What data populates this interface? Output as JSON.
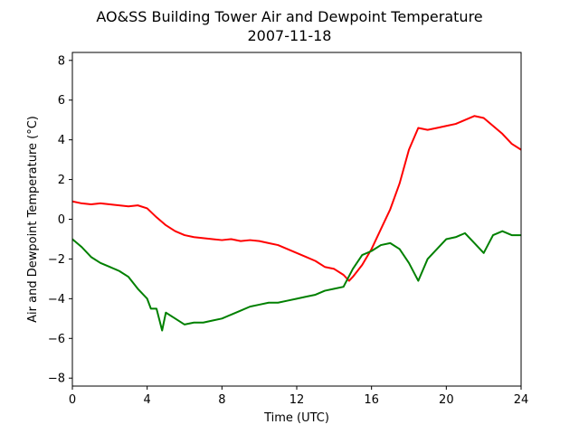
{
  "chart_data": {
    "type": "line",
    "title": "AO&SS Building Tower Air and Dewpoint Temperature",
    "subtitle": "2007-11-18",
    "xlabel": "Time (UTC)",
    "ylabel": "Air and Dewpoint Temperature (°C)",
    "xlim": [
      0,
      24
    ],
    "ylim": [
      -8.4,
      8.4
    ],
    "x_ticks": [
      0,
      4,
      8,
      12,
      16,
      20,
      24
    ],
    "y_ticks": [
      -8,
      -6,
      -4,
      -2,
      0,
      2,
      4,
      6,
      8
    ],
    "grid": false,
    "legend": "none",
    "series": [
      {
        "color": "#ff0000",
        "x": [
          0,
          0.5,
          1,
          1.5,
          2,
          2.5,
          3,
          3.5,
          4,
          4.5,
          5,
          5.5,
          6,
          6.5,
          7,
          7.5,
          8,
          8.5,
          9,
          9.5,
          10,
          10.5,
          11,
          11.5,
          12,
          12.5,
          13,
          13.5,
          14,
          14.5,
          14.8,
          15,
          15.5,
          16,
          16.5,
          17,
          17.5,
          18,
          18.5,
          19,
          19.5,
          20,
          20.5,
          21,
          21.5,
          22,
          22.5,
          23,
          23.5,
          24
        ],
        "y": [
          0.9,
          0.8,
          0.75,
          0.8,
          0.75,
          0.7,
          0.65,
          0.7,
          0.55,
          0.1,
          -0.3,
          -0.6,
          -0.8,
          -0.9,
          -0.95,
          -1.0,
          -1.05,
          -1.0,
          -1.1,
          -1.05,
          -1.1,
          -1.2,
          -1.3,
          -1.5,
          -1.7,
          -1.9,
          -2.1,
          -2.4,
          -2.5,
          -2.8,
          -3.1,
          -2.9,
          -2.3,
          -1.5,
          -0.5,
          0.5,
          1.8,
          3.5,
          4.6,
          4.5,
          4.6,
          4.7,
          4.8,
          5.0,
          5.2,
          5.1,
          4.7,
          4.3,
          3.8,
          3.5
        ]
      },
      {
        "color": "#008000",
        "x": [
          0,
          0.5,
          1,
          1.5,
          2,
          2.5,
          3,
          3.5,
          4,
          4.2,
          4.5,
          4.8,
          5,
          5.5,
          6,
          6.5,
          7,
          7.5,
          8,
          8.5,
          9,
          9.5,
          10,
          10.5,
          11,
          11.5,
          12,
          12.5,
          13,
          13.5,
          14,
          14.5,
          15,
          15.5,
          16,
          16.5,
          17,
          17.5,
          18,
          18.5,
          19,
          19.5,
          20,
          20.5,
          21,
          21.5,
          22,
          22.5,
          23,
          23.5,
          24
        ],
        "y": [
          -1.0,
          -1.4,
          -1.9,
          -2.2,
          -2.4,
          -2.6,
          -2.9,
          -3.5,
          -4.0,
          -4.5,
          -4.5,
          -5.6,
          -4.7,
          -5.0,
          -5.3,
          -5.2,
          -5.2,
          -5.1,
          -5.0,
          -4.8,
          -4.6,
          -4.4,
          -4.3,
          -4.2,
          -4.2,
          -4.1,
          -4.0,
          -3.9,
          -3.8,
          -3.6,
          -3.5,
          -3.4,
          -2.5,
          -1.8,
          -1.6,
          -1.3,
          -1.2,
          -1.5,
          -2.2,
          -3.1,
          -2.0,
          -1.5,
          -1.0,
          -0.9,
          -0.7,
          -1.2,
          -1.7,
          -0.8,
          -0.6,
          -0.8,
          -0.8
        ]
      }
    ]
  }
}
